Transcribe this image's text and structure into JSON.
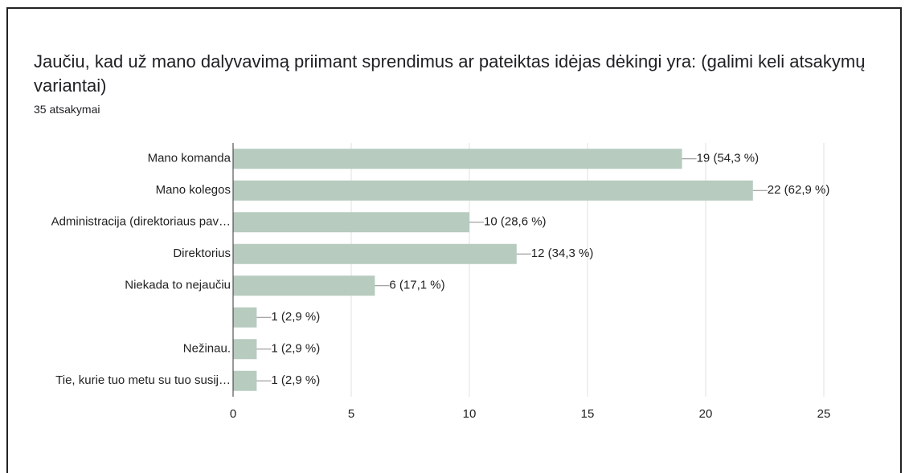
{
  "chart_data": {
    "type": "bar",
    "orientation": "horizontal",
    "title": "Jaučiu, kad už mano dalyvavimą priimant sprendimus ar pateiktas idėjas dėkingi yra: (galimi keli atsakymų variantai)",
    "subtitle": "35 atsakymai",
    "categories": [
      "Mano komanda",
      "Mano kolegos",
      "Administracija (direktoriaus pav…",
      "Direktorius",
      "Niekada to nejaučiu",
      null,
      "Nežinau.",
      "Tie, kurie tuo metu su tuo susij…"
    ],
    "values": [
      19,
      22,
      10,
      12,
      6,
      1,
      1,
      1
    ],
    "value_labels": [
      "19 (54,3 %)",
      "22 (62,9 %)",
      "10 (28,6 %)",
      "12 (34,3 %)",
      "6 (17,1 %)",
      "1 (2,9 %)",
      "1 (2,9 %)",
      "1 (2,9 %)"
    ],
    "color": "#b7cbbf",
    "xlim": [
      0,
      25
    ],
    "xticks": [
      0,
      5,
      10,
      15,
      20,
      25
    ],
    "grid": true
  }
}
